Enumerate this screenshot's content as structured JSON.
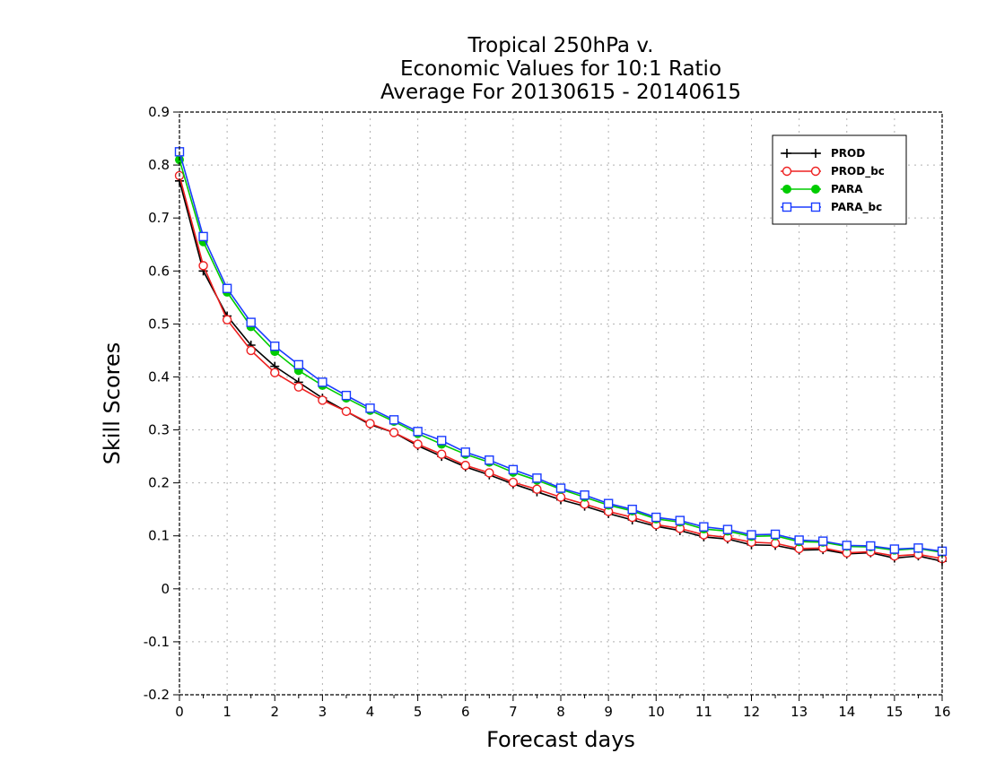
{
  "chart_data": {
    "type": "line",
    "title_lines": [
      "Tropical 250hPa v.",
      "Economic Values for 10:1 Ratio",
      "Average For 20130615 - 20140615"
    ],
    "xlabel": "Forecast days",
    "ylabel": "Skill Scores",
    "xlim": [
      0,
      16
    ],
    "ylim": [
      -0.2,
      0.9
    ],
    "x_ticks": [
      "0",
      "1",
      "2",
      "3",
      "4",
      "5",
      "6",
      "7",
      "8",
      "9",
      "10",
      "11",
      "12",
      "13",
      "14",
      "15",
      "16"
    ],
    "y_ticks": [
      "-0.2",
      "-0.1",
      "0",
      "0.1",
      "0.2",
      "0.3",
      "0.4",
      "0.5",
      "0.6",
      "0.7",
      "0.8",
      "0.9"
    ],
    "grid": true,
    "legend_position": "top-right",
    "x": [
      0,
      0.5,
      1,
      1.5,
      2,
      2.5,
      3,
      3.5,
      4,
      4.5,
      5,
      5.5,
      6,
      6.5,
      7,
      7.5,
      8,
      8.5,
      9,
      9.5,
      10,
      10.5,
      11,
      11.5,
      12,
      12.5,
      13,
      13.5,
      14,
      14.5,
      15,
      15.5,
      16
    ],
    "series": [
      {
        "name": "PROD",
        "color": "#000000",
        "marker": "plus",
        "values": [
          0.77,
          0.6,
          0.515,
          0.46,
          0.42,
          0.39,
          0.36,
          0.335,
          0.31,
          0.295,
          0.27,
          0.25,
          0.23,
          0.215,
          0.198,
          0.183,
          0.168,
          0.156,
          0.142,
          0.13,
          0.118,
          0.11,
          0.098,
          0.094,
          0.083,
          0.082,
          0.073,
          0.074,
          0.066,
          0.068,
          0.058,
          0.062,
          0.052
        ]
      },
      {
        "name": "PROD_bc",
        "color": "#ee2020",
        "marker": "circle",
        "values": [
          0.78,
          0.61,
          0.508,
          0.45,
          0.408,
          0.381,
          0.356,
          0.335,
          0.312,
          0.295,
          0.273,
          0.254,
          0.233,
          0.219,
          0.201,
          0.188,
          0.173,
          0.16,
          0.146,
          0.135,
          0.121,
          0.114,
          0.102,
          0.097,
          0.088,
          0.086,
          0.076,
          0.077,
          0.068,
          0.07,
          0.062,
          0.065,
          0.057
        ]
      },
      {
        "name": "PARA",
        "color": "#00cc00",
        "marker": "dot",
        "values": [
          0.81,
          0.655,
          0.56,
          0.495,
          0.448,
          0.412,
          0.384,
          0.36,
          0.337,
          0.316,
          0.293,
          0.273,
          0.254,
          0.239,
          0.22,
          0.205,
          0.188,
          0.173,
          0.158,
          0.147,
          0.132,
          0.126,
          0.113,
          0.109,
          0.099,
          0.1,
          0.089,
          0.088,
          0.08,
          0.079,
          0.073,
          0.076,
          0.069
        ]
      },
      {
        "name": "PARA_bc",
        "color": "#1a3cff",
        "marker": "square",
        "values": [
          0.825,
          0.665,
          0.567,
          0.503,
          0.458,
          0.423,
          0.39,
          0.365,
          0.341,
          0.319,
          0.297,
          0.28,
          0.258,
          0.243,
          0.225,
          0.209,
          0.19,
          0.177,
          0.161,
          0.15,
          0.135,
          0.129,
          0.117,
          0.112,
          0.102,
          0.103,
          0.092,
          0.09,
          0.082,
          0.081,
          0.075,
          0.077,
          0.071
        ]
      }
    ]
  }
}
